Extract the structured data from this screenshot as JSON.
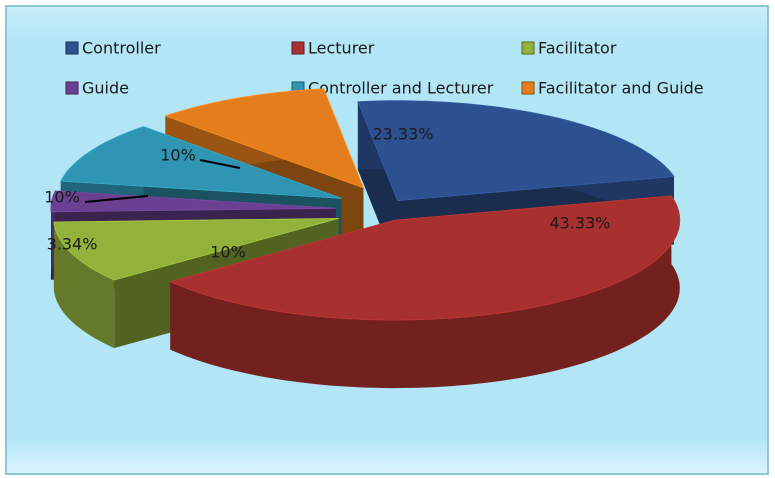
{
  "chart_data": {
    "type": "pie",
    "categories": [
      "Controller",
      "Lecturer",
      "Facilitator",
      "Guide",
      "Controller and Lecturer",
      "Facilitator and Guide"
    ],
    "values": [
      23.33,
      43.33,
      10,
      3.34,
      10,
      10
    ],
    "value_labels": [
      "23.33%",
      "43.33%",
      "10%",
      "3.34%",
      "10%",
      "10%"
    ],
    "colors": [
      "#2d5190",
      "#a8302e",
      "#93b23c",
      "#6b3f91",
      "#2f95b3",
      "#e47d1b"
    ],
    "legend": "top"
  }
}
